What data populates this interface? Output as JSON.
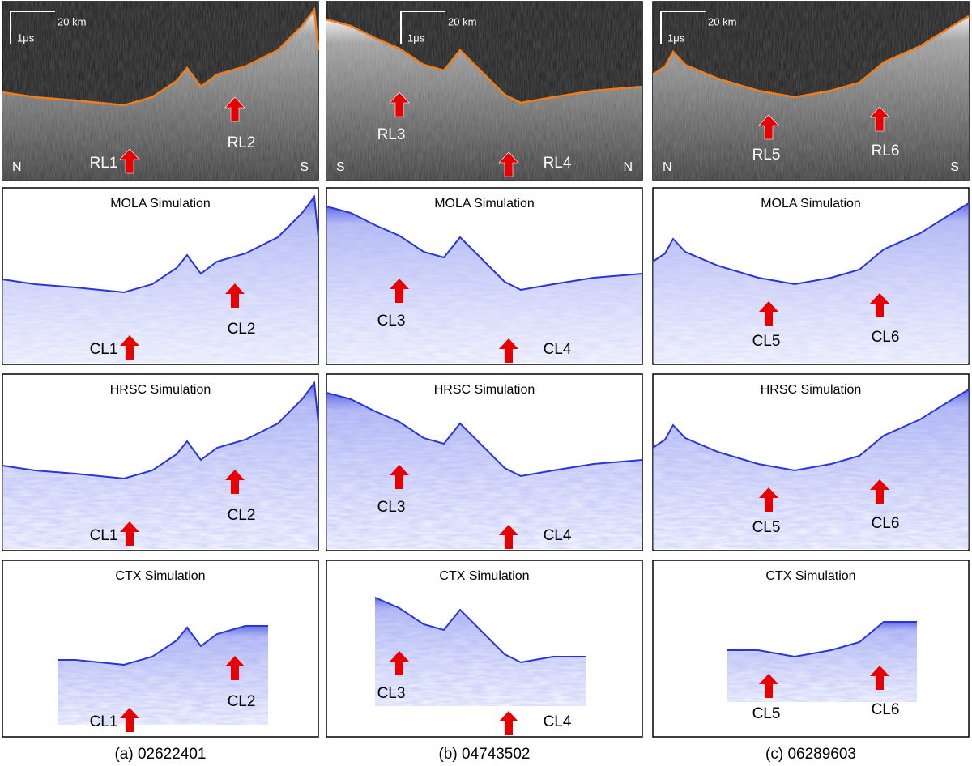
{
  "columns": [
    {
      "caption": "(a) 02622401",
      "radargram": {
        "scale_distance": "20 km",
        "scale_time": "1μs",
        "left_end": "N",
        "right_end": "S",
        "labels": [
          "RL1",
          "RL2"
        ]
      },
      "simulations": [
        {
          "title": "MOLA Simulation",
          "labels": [
            "CL1",
            "CL2"
          ]
        },
        {
          "title": "HRSC Simulation",
          "labels": [
            "CL1",
            "CL2"
          ]
        },
        {
          "title": "CTX Simulation",
          "labels": [
            "CL1",
            "CL2"
          ]
        }
      ]
    },
    {
      "caption": "(b) 04743502",
      "radargram": {
        "scale_distance": "20 km",
        "scale_time": "1μs",
        "left_end": "S",
        "right_end": "N",
        "labels": [
          "RL3",
          "RL4"
        ]
      },
      "simulations": [
        {
          "title": "MOLA Simulation",
          "labels": [
            "CL3",
            "CL4"
          ]
        },
        {
          "title": "HRSC Simulation",
          "labels": [
            "CL3",
            "CL4"
          ]
        },
        {
          "title": "CTX Simulation",
          "labels": [
            "CL3",
            "CL4"
          ]
        }
      ]
    },
    {
      "caption": "(c) 06289603",
      "radargram": {
        "scale_distance": "20 km",
        "scale_time": "1μs",
        "left_end": "N",
        "right_end": "S",
        "labels": [
          "RL5",
          "RL6"
        ]
      },
      "simulations": [
        {
          "title": "MOLA Simulation",
          "labels": [
            "CL5",
            "CL6"
          ]
        },
        {
          "title": "HRSC Simulation",
          "labels": [
            "CL5",
            "CL6"
          ]
        },
        {
          "title": "CTX Simulation",
          "labels": [
            "CL5",
            "CL6"
          ]
        }
      ]
    }
  ]
}
